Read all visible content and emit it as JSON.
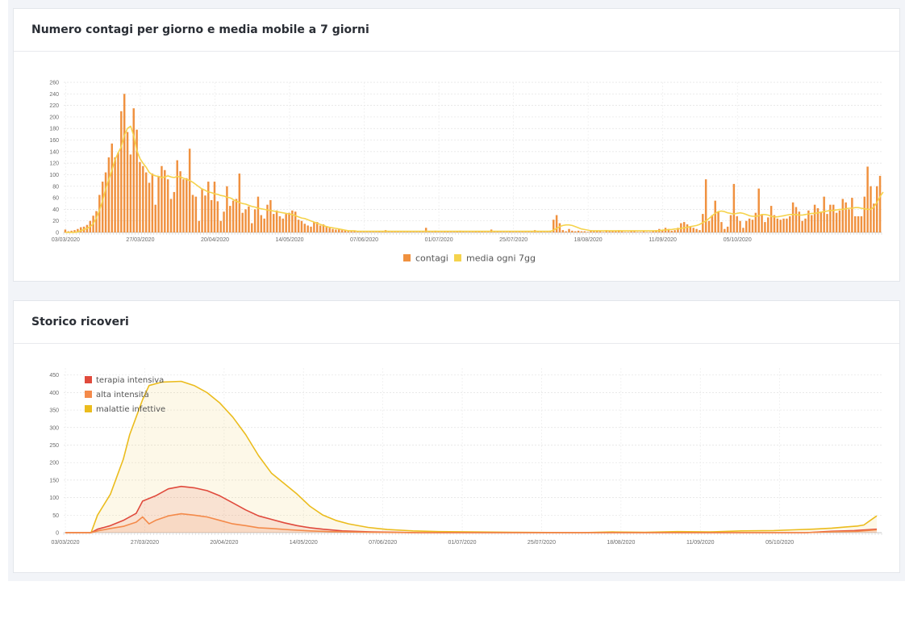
{
  "cards": {
    "contagi_title": "Numero contagi per giorno e media mobile a 7 giorni",
    "ricoveri_title": "Storico ricoveri"
  },
  "colors": {
    "contagi": "#f0913f",
    "media": "#f5d34c",
    "terapia": "#e04a3c",
    "alta": "#f48a4a",
    "malattie": "#ebbc1d"
  },
  "chart_data": [
    {
      "type": "bar",
      "title": "Numero contagi per giorno e media mobile a 7 giorni",
      "x_start": "03/03/2020",
      "x_tick_labels": [
        "03/03/2020",
        "27/03/2020",
        "20/04/2020",
        "14/05/2020",
        "07/06/2020",
        "01/07/2020",
        "25/07/2020",
        "18/08/2020",
        "11/09/2020",
        "05/10/2020"
      ],
      "y_ticks": [
        0,
        20,
        40,
        60,
        80,
        100,
        120,
        140,
        160,
        180,
        200,
        220,
        240,
        260
      ],
      "ylim": [
        0,
        260
      ],
      "legend_position": "bottom",
      "series": [
        {
          "name": "contagi",
          "type": "bar",
          "values": [
            5,
            2,
            3,
            4,
            6,
            9,
            10,
            13,
            20,
            29,
            37,
            65,
            88,
            104,
            130,
            154,
            130,
            138,
            210,
            240,
            174,
            135,
            215,
            178,
            122,
            115,
            104,
            86,
            102,
            48,
            98,
            115,
            108,
            92,
            58,
            70,
            125,
            106,
            92,
            94,
            145,
            65,
            62,
            20,
            76,
            64,
            88,
            56,
            88,
            54,
            20,
            36,
            80,
            46,
            55,
            58,
            102,
            34,
            40,
            45,
            16,
            40,
            62,
            30,
            24,
            48,
            56,
            32,
            38,
            28,
            24,
            32,
            34,
            38,
            36,
            22,
            20,
            15,
            12,
            10,
            18,
            18,
            12,
            14,
            11,
            8,
            6,
            5,
            5,
            4,
            4,
            2,
            2,
            2,
            1,
            1,
            1,
            1,
            1,
            1,
            1,
            2,
            1,
            4,
            1,
            1,
            1,
            1,
            1,
            1,
            1,
            1,
            1,
            1,
            1,
            1,
            8,
            1,
            1,
            3,
            1,
            1,
            2,
            2,
            1,
            1,
            2,
            3,
            2,
            1,
            1,
            1,
            2,
            2,
            2,
            1,
            1,
            5,
            1,
            1,
            1,
            1,
            1,
            2,
            1,
            1,
            1,
            1,
            1,
            1,
            1,
            4,
            1,
            2,
            1,
            1,
            3,
            22,
            30,
            16,
            4,
            2,
            6,
            3,
            2,
            3,
            2,
            2,
            1,
            4,
            2,
            3,
            2,
            1,
            4,
            2,
            3,
            2,
            4,
            2,
            1,
            1,
            2,
            2,
            1,
            1,
            2,
            1,
            1,
            3,
            4,
            6,
            4,
            8,
            6,
            3,
            4,
            8,
            16,
            18,
            14,
            10,
            8,
            6,
            4,
            32,
            92,
            20,
            30,
            55,
            35,
            18,
            6,
            10,
            30,
            84,
            28,
            20,
            8,
            20,
            24,
            22,
            34,
            76,
            30,
            18,
            26,
            46,
            30,
            24,
            22,
            24,
            24,
            28,
            52,
            44,
            36,
            20,
            24,
            38,
            30,
            48,
            42,
            36,
            62,
            32,
            48,
            48,
            34,
            38,
            58,
            52,
            40,
            60,
            28,
            28,
            28,
            62,
            114,
            80,
            50,
            80,
            98
          ]
        },
        {
          "name": "media ogni 7gg",
          "type": "line",
          "values": [
            0,
            0,
            0,
            0,
            1,
            3,
            5,
            7,
            10,
            15,
            25,
            38,
            55,
            75,
            92,
            108,
            126,
            138,
            148,
            168,
            180,
            184,
            168,
            142,
            128,
            120,
            113,
            104,
            100,
            98,
            97,
            95,
            96,
            98,
            96,
            95,
            97,
            96,
            94,
            92,
            90,
            87,
            83,
            79,
            75,
            73,
            70,
            69,
            67,
            66,
            64,
            63,
            61,
            60,
            57,
            54,
            52,
            50,
            49,
            47,
            45,
            44,
            42,
            41,
            40,
            39,
            38,
            37,
            36,
            35,
            34,
            33,
            32,
            31,
            29,
            27,
            25,
            24,
            22,
            20,
            18,
            16,
            14,
            12,
            10,
            9,
            8,
            7,
            6,
            5,
            4,
            3,
            3,
            3,
            2,
            2,
            2,
            2,
            2,
            2,
            2,
            2,
            2,
            2,
            2,
            2,
            2,
            2,
            2,
            2,
            2,
            2,
            2,
            2,
            2,
            2,
            2,
            2,
            2,
            2,
            2,
            2,
            2,
            2,
            2,
            2,
            2,
            2,
            2,
            2,
            2,
            2,
            2,
            2,
            2,
            2,
            2,
            2,
            2,
            2,
            2,
            2,
            2,
            2,
            2,
            2,
            2,
            2,
            2,
            2,
            2,
            2,
            2,
            2,
            2,
            2,
            2,
            4,
            7,
            10,
            12,
            13,
            13,
            12,
            10,
            8,
            6,
            5,
            4,
            3,
            3,
            3,
            3,
            3,
            3,
            3,
            3,
            3,
            3,
            3,
            3,
            3,
            3,
            3,
            3,
            3,
            3,
            3,
            3,
            3,
            3,
            3,
            4,
            4,
            5,
            5,
            6,
            6,
            7,
            8,
            9,
            10,
            11,
            12,
            14,
            17,
            20,
            24,
            29,
            33,
            36,
            37,
            36,
            34,
            33,
            32,
            33,
            34,
            33,
            31,
            29,
            28,
            28,
            29,
            31,
            31,
            30,
            28,
            27,
            27,
            28,
            29,
            30,
            31,
            31,
            31,
            30,
            30,
            31,
            32,
            33,
            33,
            34,
            35,
            36,
            37,
            38,
            38,
            39,
            40,
            40,
            41,
            42,
            42,
            43,
            43,
            42,
            41,
            40,
            40,
            44,
            52,
            62,
            70
          ]
        }
      ]
    },
    {
      "type": "area",
      "title": "Storico ricoveri",
      "x_start": "03/03/2020",
      "x_tick_labels": [
        "03/03/2020",
        "27/03/2020",
        "20/04/2020",
        "14/05/2020",
        "07/06/2020",
        "01/07/2020",
        "25/07/2020",
        "18/08/2020",
        "11/09/2020",
        "05/10/2020"
      ],
      "y_ticks": [
        0,
        50,
        100,
        150,
        200,
        250,
        300,
        350,
        400,
        450
      ],
      "ylim": [
        0,
        470
      ],
      "legend_position": "top-left",
      "series": [
        {
          "name": "terapia intensiva",
          "points": [
            [
              0,
              0
            ],
            [
              8,
              0
            ],
            [
              10,
              10
            ],
            [
              14,
              20
            ],
            [
              18,
              35
            ],
            [
              22,
              55
            ],
            [
              24,
              90
            ],
            [
              28,
              105
            ],
            [
              32,
              125
            ],
            [
              36,
              132
            ],
            [
              40,
              128
            ],
            [
              44,
              120
            ],
            [
              48,
              105
            ],
            [
              52,
              85
            ],
            [
              56,
              65
            ],
            [
              60,
              48
            ],
            [
              64,
              38
            ],
            [
              68,
              28
            ],
            [
              72,
              20
            ],
            [
              76,
              14
            ],
            [
              80,
              10
            ],
            [
              86,
              5
            ],
            [
              95,
              2
            ],
            [
              110,
              0
            ],
            [
              230,
              0
            ],
            [
              238,
              4
            ],
            [
              245,
              6
            ],
            [
              252,
              10
            ]
          ]
        },
        {
          "name": "alta intensità",
          "points": [
            [
              0,
              0
            ],
            [
              8,
              0
            ],
            [
              10,
              5
            ],
            [
              14,
              12
            ],
            [
              18,
              18
            ],
            [
              22,
              30
            ],
            [
              24,
              45
            ],
            [
              26,
              25
            ],
            [
              28,
              35
            ],
            [
              32,
              48
            ],
            [
              36,
              54
            ],
            [
              40,
              50
            ],
            [
              44,
              45
            ],
            [
              48,
              35
            ],
            [
              52,
              25
            ],
            [
              56,
              20
            ],
            [
              60,
              14
            ],
            [
              64,
              12
            ],
            [
              70,
              8
            ],
            [
              76,
              5
            ],
            [
              82,
              3
            ],
            [
              95,
              1
            ],
            [
              110,
              0
            ],
            [
              230,
              0
            ],
            [
              240,
              3
            ],
            [
              246,
              4
            ],
            [
              252,
              8
            ]
          ]
        },
        {
          "name": "malattie infettive",
          "points": [
            [
              0,
              0
            ],
            [
              8,
              0
            ],
            [
              10,
              50
            ],
            [
              14,
              110
            ],
            [
              18,
              210
            ],
            [
              20,
              280
            ],
            [
              22,
              330
            ],
            [
              24,
              380
            ],
            [
              26,
              420
            ],
            [
              30,
              430
            ],
            [
              36,
              432
            ],
            [
              40,
              420
            ],
            [
              44,
              400
            ],
            [
              48,
              370
            ],
            [
              52,
              330
            ],
            [
              56,
              280
            ],
            [
              60,
              220
            ],
            [
              64,
              170
            ],
            [
              68,
              140
            ],
            [
              72,
              110
            ],
            [
              76,
              75
            ],
            [
              80,
              50
            ],
            [
              84,
              35
            ],
            [
              88,
              25
            ],
            [
              94,
              15
            ],
            [
              100,
              9
            ],
            [
              108,
              5
            ],
            [
              116,
              3
            ],
            [
              140,
              1
            ],
            [
              160,
              0
            ],
            [
              170,
              2
            ],
            [
              180,
              1
            ],
            [
              190,
              3
            ],
            [
              200,
              2
            ],
            [
              210,
              5
            ],
            [
              220,
              6
            ],
            [
              226,
              8
            ],
            [
              232,
              10
            ],
            [
              238,
              13
            ],
            [
              242,
              16
            ],
            [
              246,
              19
            ],
            [
              248,
              22
            ],
            [
              250,
              35
            ],
            [
              252,
              48
            ]
          ]
        }
      ]
    }
  ]
}
